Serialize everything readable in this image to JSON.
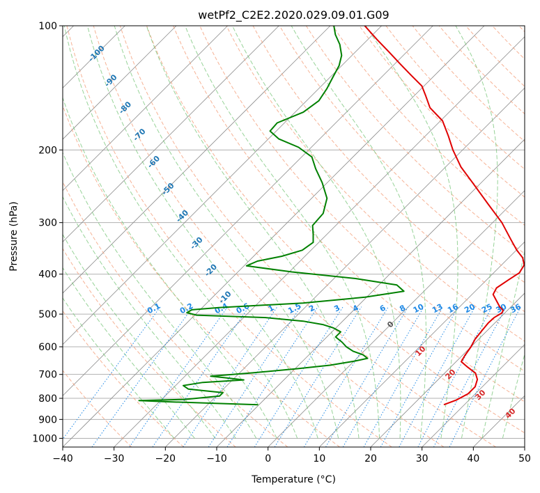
{
  "chart_data": {
    "type": "skew-t log-p",
    "title": "wetPf2_C2E2.2020.029.09.01.G09",
    "xlabel": "Temperature (°C)",
    "ylabel": "Pressure (hPa)",
    "xlim": [
      -40,
      50
    ],
    "ylim": [
      1050,
      100
    ],
    "y_scale": "log",
    "grid": true,
    "x_ticks": [
      -40,
      -30,
      -20,
      -10,
      0,
      10,
      20,
      30,
      40,
      50
    ],
    "x_tick_labels": [
      "−40",
      "−30",
      "−20",
      "−10",
      "0",
      "10",
      "20",
      "30",
      "40",
      "50"
    ],
    "y_ticks": [
      100,
      200,
      300,
      400,
      500,
      600,
      700,
      800,
      900,
      1000
    ],
    "y_tick_labels": [
      "100",
      "200",
      "300",
      "400",
      "500",
      "600",
      "700",
      "800",
      "900",
      "1000"
    ],
    "mixing_ratio_labels": [
      "0.1",
      "0.2",
      "0.4",
      "0.6",
      "1",
      "1.5",
      "2",
      "3",
      "4",
      "6",
      "8",
      "10",
      "13",
      "16",
      "20",
      "25",
      "30",
      "36"
    ],
    "wetbulb_labels_cold": [
      "-100",
      "-90",
      "-80",
      "-70",
      "-60",
      "-50",
      "-40",
      "-30",
      "-20",
      "-10"
    ],
    "wetbulb_labels_warm": [
      "0",
      "10",
      "20",
      "30",
      "40"
    ],
    "series": [
      {
        "color": "#e00000",
        "points": [
          {
            "p": 829,
            "t": 26.0
          },
          {
            "p": 808,
            "t": 27.5
          },
          {
            "p": 780,
            "t": 28.6
          },
          {
            "p": 750,
            "t": 28.6
          },
          {
            "p": 720,
            "t": 27.6
          },
          {
            "p": 695,
            "t": 26.0
          },
          {
            "p": 672,
            "t": 23.3
          },
          {
            "p": 652,
            "t": 21.0
          },
          {
            "p": 630,
            "t": 20.5
          },
          {
            "p": 600,
            "t": 20.0
          },
          {
            "p": 575,
            "t": 19.3
          },
          {
            "p": 550,
            "t": 19.0
          },
          {
            "p": 525,
            "t": 18.7
          },
          {
            "p": 510,
            "t": 18.8
          },
          {
            "p": 497,
            "t": 19.4
          },
          {
            "p": 490,
            "t": 19.2
          },
          {
            "p": 480,
            "t": 17.8
          },
          {
            "p": 465,
            "t": 16.1
          },
          {
            "p": 448,
            "t": 14.1
          },
          {
            "p": 432,
            "t": 13.5
          },
          {
            "p": 412,
            "t": 14.3
          },
          {
            "p": 397,
            "t": 15.0
          },
          {
            "p": 380,
            "t": 14.4
          },
          {
            "p": 365,
            "t": 12.7
          },
          {
            "p": 350,
            "t": 10.1
          },
          {
            "p": 330,
            "t": 6.9
          },
          {
            "p": 300,
            "t": 1.8
          },
          {
            "p": 270,
            "t": -4.6
          },
          {
            "p": 240,
            "t": -11.7
          },
          {
            "p": 220,
            "t": -17.0
          },
          {
            "p": 200,
            "t": -21.9
          },
          {
            "p": 185,
            "t": -25.5
          },
          {
            "p": 170,
            "t": -29.6
          },
          {
            "p": 158,
            "t": -34.6
          },
          {
            "p": 148,
            "t": -37.7
          },
          {
            "p": 140,
            "t": -40.4
          },
          {
            "p": 132,
            "t": -44.5
          },
          {
            "p": 124,
            "t": -48.8
          },
          {
            "p": 116,
            "t": -53.3
          },
          {
            "p": 108,
            "t": -58.2
          },
          {
            "p": 100,
            "t": -63.3
          }
        ]
      },
      {
        "color": "#008000",
        "points": [
          {
            "p": 829,
            "t": -10.2
          },
          {
            "p": 822,
            "t": -19.8
          },
          {
            "p": 815,
            "t": -29.2
          },
          {
            "p": 810,
            "t": -34.2
          },
          {
            "p": 805,
            "t": -25.5
          },
          {
            "p": 790,
            "t": -19.4
          },
          {
            "p": 775,
            "t": -19.4
          },
          {
            "p": 760,
            "t": -26.8
          },
          {
            "p": 745,
            "t": -28.5
          },
          {
            "p": 732,
            "t": -25.3
          },
          {
            "p": 722,
            "t": -17.8
          },
          {
            "p": 713,
            "t": -22.0
          },
          {
            "p": 707,
            "t": -25.0
          },
          {
            "p": 694,
            "t": -17.6
          },
          {
            "p": 678,
            "t": -9.6
          },
          {
            "p": 665,
            "t": -3.9
          },
          {
            "p": 650,
            "t": 0.1
          },
          {
            "p": 640,
            "t": 2.1
          },
          {
            "p": 628,
            "t": 0.6
          },
          {
            "p": 615,
            "t": -2.1
          },
          {
            "p": 600,
            "t": -4.3
          },
          {
            "p": 585,
            "t": -6.0
          },
          {
            "p": 568,
            "t": -8.3
          },
          {
            "p": 552,
            "t": -8.3
          },
          {
            "p": 540,
            "t": -10.5
          },
          {
            "p": 530,
            "t": -13.2
          },
          {
            "p": 520,
            "t": -17.7
          },
          {
            "p": 510,
            "t": -25.5
          },
          {
            "p": 503,
            "t": -39.6
          },
          {
            "p": 496,
            "t": -42.0
          },
          {
            "p": 488,
            "t": -41.6
          },
          {
            "p": 482,
            "t": -36.8
          },
          {
            "p": 470,
            "t": -21.3
          },
          {
            "p": 455,
            "t": -10.3
          },
          {
            "p": 440,
            "t": -3.9
          },
          {
            "p": 425,
            "t": -6.5
          },
          {
            "p": 410,
            "t": -15.8
          },
          {
            "p": 395,
            "t": -29.5
          },
          {
            "p": 382,
            "t": -39.5
          },
          {
            "p": 372,
            "t": -38.3
          },
          {
            "p": 362,
            "t": -34.5
          },
          {
            "p": 350,
            "t": -31.7
          },
          {
            "p": 335,
            "t": -31.1
          },
          {
            "p": 320,
            "t": -32.7
          },
          {
            "p": 305,
            "t": -34.5
          },
          {
            "p": 285,
            "t": -34.8
          },
          {
            "p": 262,
            "t": -37.0
          },
          {
            "p": 240,
            "t": -41.0
          },
          {
            "p": 222,
            "t": -45.0
          },
          {
            "p": 208,
            "t": -48.0
          },
          {
            "p": 197,
            "t": -52.5
          },
          {
            "p": 188,
            "t": -58.0
          },
          {
            "p": 180,
            "t": -61.2
          },
          {
            "p": 172,
            "t": -61.4
          },
          {
            "p": 162,
            "t": -58.4
          },
          {
            "p": 152,
            "t": -57.6
          },
          {
            "p": 142,
            "t": -58.4
          },
          {
            "p": 133,
            "t": -59.5
          },
          {
            "p": 125,
            "t": -60.5
          },
          {
            "p": 118,
            "t": -62.0
          },
          {
            "p": 111,
            "t": -64.5
          },
          {
            "p": 105,
            "t": -67.3
          },
          {
            "p": 100,
            "t": -69.3
          }
        ]
      }
    ],
    "colors": {
      "isobar": "#b0b0b0",
      "isotherm": "#8c8c8c",
      "dry_adiabat": "#f4a582",
      "moist_adiabat": "#74c476",
      "mixing_ratio": "#1e88e5",
      "label_blue": "#1f77b4",
      "label_red": "#d62728",
      "label_green": "#555555"
    }
  }
}
